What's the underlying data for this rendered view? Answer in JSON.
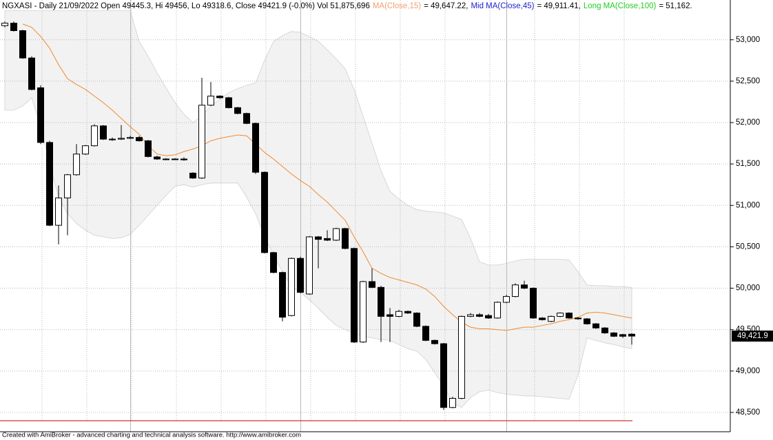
{
  "chart_data": {
    "type": "candlestick",
    "title": "NGXASI - Daily 21/09/2022 Open 49445.3, Hi 49456, Lo 49318.6, Close 49421.9 (-0.0%) Vol 51,875,696",
    "indicators": [
      {
        "name": "MA(Close,15)",
        "value_label": "= 49,647.22,",
        "color": "#f0a070"
      },
      {
        "name": "Mid MA(Close,45)",
        "value_label": "= 49,911.41,",
        "color": "#2020d0"
      },
      {
        "name": "Long MA(Close,100)",
        "value_label": "= 51,162.",
        "color": "#22cc22"
      }
    ],
    "open": [
      53170,
      53200,
      53110,
      52780,
      52420,
      51760,
      50760,
      51090,
      51370,
      51620,
      51720,
      51960,
      51800,
      51800,
      51810,
      51820,
      51780,
      51585,
      51560,
      51555,
      51560,
      51390,
      51330,
      52210,
      52320,
      52300,
      52180,
      52110,
      51990,
      51400,
      50430,
      50190,
      49670,
      50360,
      49930,
      50620,
      50600,
      50580,
      50720,
      50480,
      49350,
      50080,
      50010,
      49680,
      49660,
      49720,
      49700,
      49540,
      49370,
      49330,
      48560,
      48670,
      49660,
      49680,
      49670,
      49640,
      49830,
      49900,
      50040,
      50000,
      49640,
      49600,
      49660,
      49700,
      49640,
      49630,
      49570,
      49520,
      49460,
      49440,
      49445.3
    ],
    "close": [
      53200,
      53110,
      52780,
      52400,
      51760,
      50760,
      51090,
      51370,
      51620,
      51720,
      51960,
      51800,
      51795,
      51810,
      51820,
      51780,
      51590,
      51560,
      51555,
      51560,
      51550,
      51330,
      52210,
      52320,
      52300,
      52180,
      52110,
      51990,
      51400,
      50430,
      50190,
      49650,
      50360,
      49950,
      50620,
      50590,
      50580,
      50720,
      50480,
      49350,
      50080,
      50010,
      49660,
      49660,
      49720,
      49700,
      49540,
      49370,
      49330,
      48560,
      48670,
      49660,
      49680,
      49660,
      49640,
      49830,
      49900,
      50040,
      50000,
      49640,
      49620,
      49660,
      49700,
      49640,
      49630,
      49570,
      49520,
      49460,
      49420,
      49420,
      49421.9
    ],
    "high": [
      53220,
      53220,
      53120,
      52800,
      52450,
      51780,
      51240,
      51380,
      51740,
      51730,
      51980,
      51970,
      51820,
      51970,
      51840,
      51840,
      51790,
      51600,
      51570,
      51570,
      51580,
      51400,
      52540,
      52490,
      52330,
      52310,
      52190,
      52120,
      52000,
      51410,
      50440,
      50200,
      50370,
      50380,
      50630,
      50630,
      50700,
      50730,
      50730,
      50490,
      50090,
      50240,
      50030,
      49760,
      49740,
      49730,
      49710,
      49550,
      49380,
      49340,
      48690,
      49670,
      49700,
      49700,
      49690,
      49840,
      49920,
      50060,
      50090,
      50010,
      49650,
      49670,
      49710,
      49710,
      49650,
      49640,
      49580,
      49530,
      49470,
      49450,
      49456
    ],
    "low": [
      53150,
      53100,
      52770,
      52390,
      51740,
      50750,
      50530,
      50640,
      51360,
      51610,
      51710,
      51790,
      51780,
      51790,
      51800,
      51770,
      51580,
      51550,
      51545,
      51550,
      51540,
      51320,
      51320,
      52200,
      52290,
      52170,
      52100,
      51980,
      51380,
      50420,
      50180,
      49600,
      49660,
      49940,
      49920,
      50240,
      50570,
      50570,
      50470,
      49340,
      49340,
      50000,
      49350,
      49350,
      49650,
      49690,
      49530,
      49360,
      49320,
      48530,
      48550,
      48660,
      49650,
      49650,
      49630,
      49630,
      49820,
      49890,
      49990,
      49630,
      49610,
      49590,
      49650,
      49630,
      49620,
      49560,
      49510,
      49450,
      49410,
      49400,
      49318.6
    ],
    "ma": {
      "name": "MA(Close,15)",
      "color": "#f08a30",
      "values": [
        null,
        null,
        53190,
        53150,
        53040,
        52900,
        52700,
        52530,
        52460,
        52400,
        52320,
        52240,
        52150,
        52050,
        51950,
        51860,
        51720,
        51620,
        51600,
        51610,
        51650,
        51680,
        51720,
        51780,
        51810,
        51830,
        51850,
        51840,
        51740,
        51640,
        51560,
        51470,
        51380,
        51300,
        51230,
        51130,
        51040,
        50930,
        50820,
        50620,
        50440,
        50240,
        50180,
        50130,
        50100,
        50070,
        50040,
        49990,
        49900,
        49780,
        49680,
        49590,
        49530,
        49510,
        49510,
        49500,
        49490,
        49510,
        49530,
        49530,
        49550,
        49570,
        49600,
        49620,
        49650,
        49700,
        49710,
        49700,
        49680,
        49660,
        49640
      ]
    },
    "band": {
      "color": "#f2f2f2",
      "edge": "#d0d0d0",
      "upper": [
        53350,
        53350,
        53350,
        53350,
        53350,
        53350,
        53350,
        53350,
        53350,
        53350,
        53350,
        53350,
        53350,
        53350,
        53350,
        52980,
        52800,
        52600,
        52420,
        52240,
        52100,
        52000,
        52080,
        52200,
        52280,
        52360,
        52410,
        52450,
        52480,
        52750,
        52980,
        53050,
        53100,
        53090,
        53040,
        52980,
        52880,
        52770,
        52650,
        52400,
        52080,
        51750,
        51420,
        51170,
        51080,
        51000,
        50950,
        50930,
        50920,
        50910,
        50870,
        50830,
        50600,
        50320,
        50280,
        50280,
        50300,
        50330,
        50350,
        50350,
        50350,
        50350,
        50350,
        50340,
        50200,
        50040,
        50030,
        50030,
        50020,
        50020,
        50010
      ],
      "lower": [
        52150,
        52150,
        52200,
        52300,
        51950,
        51500,
        51100,
        50900,
        50780,
        50700,
        50640,
        50620,
        50600,
        50610,
        50650,
        50760,
        50880,
        51000,
        51120,
        51230,
        51250,
        51220,
        51250,
        51270,
        51270,
        51270,
        51270,
        51100,
        50900,
        50620,
        50400,
        50200,
        50020,
        49950,
        49860,
        49760,
        49650,
        49550,
        49500,
        49450,
        49420,
        49400,
        49380,
        49370,
        49320,
        49270,
        49240,
        49140,
        48980,
        48820,
        48620,
        48560,
        48680,
        48750,
        48770,
        48740,
        48720,
        48710,
        48700,
        48700,
        48690,
        48680,
        48670,
        48660,
        48950,
        49400,
        49370,
        49340,
        49320,
        49290,
        49270
      ]
    },
    "ylim": [
      48400,
      53480
    ],
    "yticks": [
      {
        "value": 48500,
        "label": "48,500"
      },
      {
        "value": 49000,
        "label": "49,000"
      },
      {
        "value": 49500,
        "label": "49,500"
      },
      {
        "value": 50000,
        "label": "50,000"
      },
      {
        "value": 50500,
        "label": "50,500"
      },
      {
        "value": 51000,
        "label": "51,000"
      },
      {
        "value": 51500,
        "label": "51,500"
      },
      {
        "value": 52000,
        "label": "52,000"
      },
      {
        "value": 52500,
        "label": "52,500"
      },
      {
        "value": 53000,
        "label": "53,000"
      }
    ],
    "last_value": {
      "value": 49421.9,
      "label": "49,421.9"
    },
    "grid": true,
    "footer": "Created with AmiBroker - advanced charting and technical analysis software. http://www.amibroker.com"
  }
}
